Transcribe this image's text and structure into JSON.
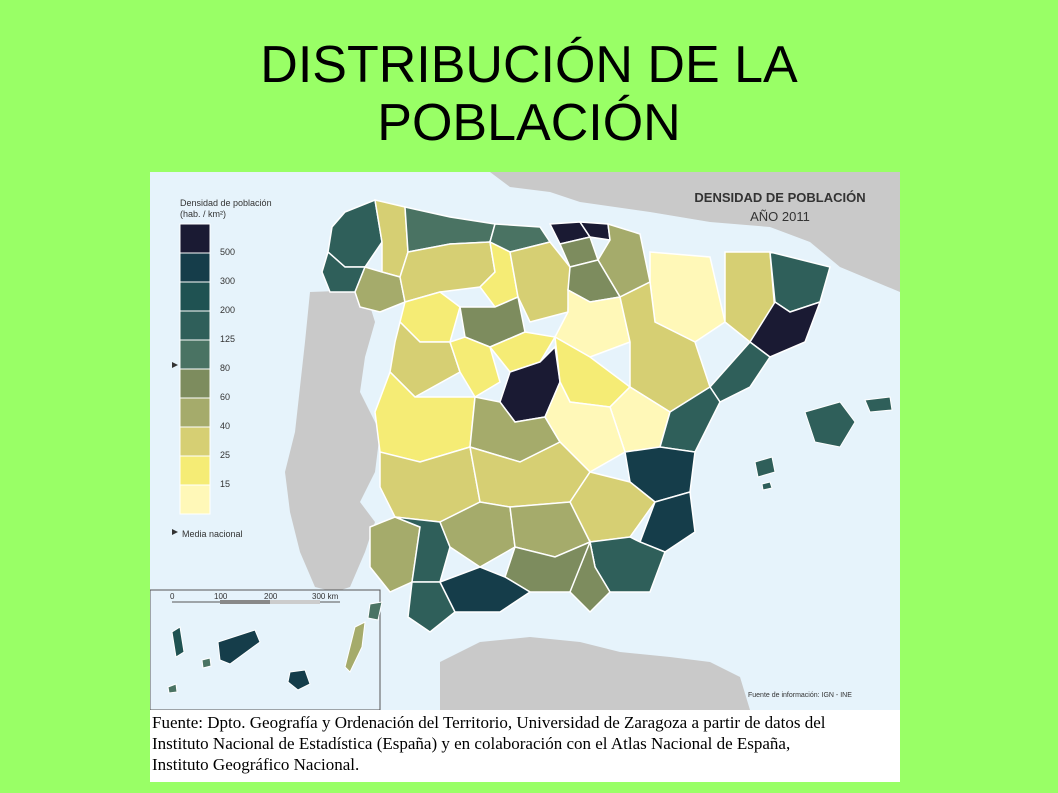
{
  "slide": {
    "title_line1": "DISTRIBUCIÓN DE LA",
    "title_line2": "POBLACIÓN"
  },
  "map": {
    "title": "DENSIDAD DE POBLACIÓN",
    "subtitle": "AÑO 2011",
    "legend_title_line1": "Densidad de población",
    "legend_title_line2": "(hab. / km²)",
    "legend_thresholds": [
      "500",
      "300",
      "200",
      "125",
      "80",
      "60",
      "40",
      "25",
      "15"
    ],
    "legend_colors": [
      "#1a1a33",
      "#153d4a",
      "#1f5252",
      "#2f5f5a",
      "#4a7363",
      "#7d8c5e",
      "#a5ab6b",
      "#d6cf73",
      "#f5ec75",
      "#fff8b8"
    ],
    "legend_note": "Media nacional",
    "scale_labels": [
      "0",
      "100",
      "200",
      "300 km"
    ],
    "source": "Fuente de información: IGN - INE",
    "colors": {
      "sea": "#e6f3fb",
      "land_foreign": "#c9c9c9",
      "border": "#ffffff"
    }
  },
  "caption": {
    "line1": "Fuente: Dpto. Geografía y Ordenación del Territorio, Universidad de Zaragoza a partir de datos del",
    "line2": "Instituto Nacional de Estadística (España) y en colaboración con el Atlas Nacional de España,",
    "line3": "Instituto Geográfico Nacional."
  }
}
